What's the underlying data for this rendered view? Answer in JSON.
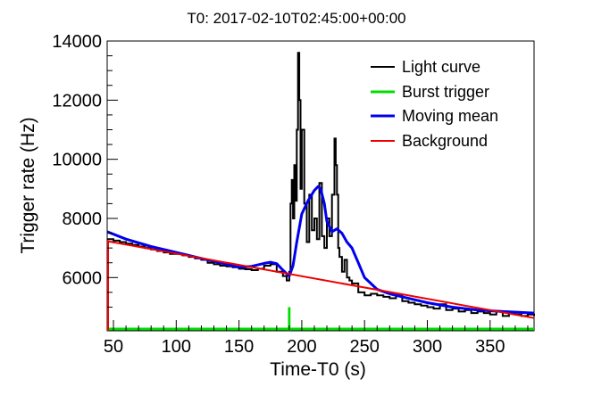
{
  "chart_data": {
    "type": "line",
    "title": "T0: 2017-02-10T02:45:00+00:00",
    "xlabel": "Time-T0 (s)",
    "ylabel": "Trigger rate (Hz)",
    "xlim": [
      45,
      385
    ],
    "ylim": [
      4200,
      14000
    ],
    "x_ticks": [
      50,
      100,
      150,
      200,
      250,
      300,
      350
    ],
    "y_ticks": [
      6000,
      8000,
      10000,
      12000,
      14000
    ],
    "legend_position": "top-right",
    "series": [
      {
        "name": "Light curve",
        "color": "#000000",
        "style": "step",
        "x": [
          45,
          50,
          55,
          60,
          65,
          70,
          75,
          80,
          85,
          90,
          95,
          100,
          105,
          110,
          115,
          120,
          125,
          130,
          135,
          140,
          145,
          150,
          155,
          160,
          165,
          170,
          175,
          180,
          185,
          188,
          190,
          191,
          192,
          193,
          194,
          195,
          196,
          197,
          198,
          199,
          200,
          202,
          204,
          206,
          208,
          210,
          212,
          214,
          216,
          218,
          220,
          222,
          224,
          226,
          227,
          228,
          229,
          230,
          232,
          234,
          236,
          238,
          240,
          245,
          250,
          255,
          260,
          265,
          270,
          275,
          280,
          285,
          290,
          295,
          300,
          305,
          310,
          315,
          320,
          325,
          330,
          335,
          340,
          345,
          350,
          355,
          360,
          365,
          370,
          375,
          380,
          385
        ],
        "values": [
          7300,
          7250,
          7200,
          7150,
          7100,
          7050,
          7000,
          6950,
          6900,
          6850,
          6800,
          6800,
          6750,
          6700,
          6650,
          6600,
          6500,
          6450,
          6400,
          6380,
          6350,
          6300,
          6280,
          6250,
          6300,
          6400,
          6450,
          6200,
          6050,
          5900,
          6200,
          8500,
          9300,
          8000,
          9800,
          8600,
          11000,
          13600,
          12000,
          9000,
          11000,
          8500,
          7200,
          8800,
          7600,
          8000,
          7300,
          9200,
          7400,
          7000,
          8000,
          7400,
          8800,
          10700,
          9800,
          8800,
          7000,
          6700,
          6200,
          6600,
          6000,
          5900,
          5800,
          5500,
          5400,
          5450,
          5400,
          5350,
          5300,
          5400,
          5200,
          5150,
          5100,
          5050,
          5000,
          4950,
          5100,
          4900,
          4950,
          4850,
          4900,
          4800,
          4850,
          4800,
          4750,
          4850,
          4700,
          4800,
          4750,
          4700,
          4750,
          4700
        ]
      },
      {
        "name": "Burst trigger",
        "color": "#00dd00",
        "style": "step",
        "segments": [
          {
            "x0": 45,
            "x1": 385,
            "y": 4200
          }
        ],
        "pulse": {
          "x0": 189,
          "x1": 191,
          "y": 5000
        }
      },
      {
        "name": "Moving mean",
        "color": "#0000ee",
        "style": "line",
        "x": [
          45,
          60,
          80,
          100,
          120,
          140,
          150,
          160,
          170,
          175,
          180,
          185,
          190,
          193,
          196,
          200,
          205,
          210,
          213,
          215,
          218,
          220,
          224,
          228,
          232,
          236,
          240,
          245,
          250,
          255,
          260,
          270,
          280,
          290,
          300,
          320,
          340,
          360,
          385
        ],
        "values": [
          7550,
          7300,
          7050,
          6850,
          6650,
          6450,
          6350,
          6380,
          6480,
          6520,
          6470,
          6250,
          6050,
          6400,
          7200,
          8150,
          8600,
          8950,
          9080,
          9000,
          8500,
          7900,
          7550,
          7650,
          7500,
          7200,
          7000,
          6500,
          6000,
          5800,
          5600,
          5450,
          5350,
          5250,
          5150,
          5000,
          4900,
          4850,
          4800
        ]
      },
      {
        "name": "Background",
        "color": "#ee0000",
        "style": "line",
        "x": [
          45,
          385
        ],
        "values": [
          7230,
          4630
        ]
      }
    ]
  }
}
